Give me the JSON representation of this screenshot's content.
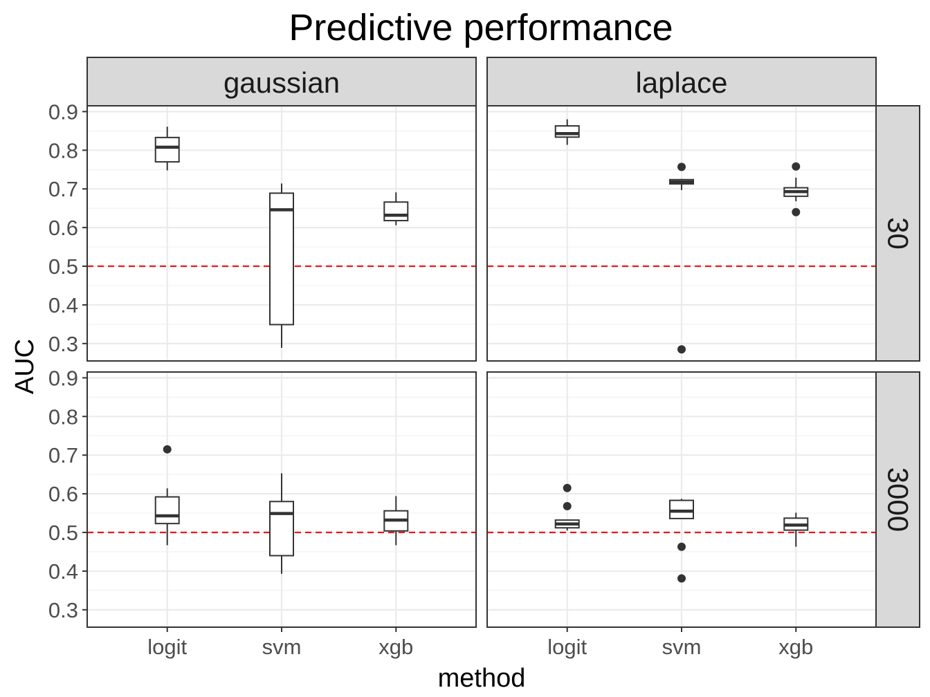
{
  "chart_data": {
    "type": "boxplot",
    "title": "Predictive performance",
    "xlabel": "method",
    "ylabel": "AUC",
    "categories": [
      "logit",
      "svm",
      "xgb"
    ],
    "facet_cols": [
      "gaussian",
      "laplace"
    ],
    "facet_rows": [
      "30",
      "3000"
    ],
    "y_ticks": [
      "0.3",
      "0.4",
      "0.5",
      "0.6",
      "0.7",
      "0.8",
      "0.9"
    ],
    "ylim": [
      0.255,
      0.915
    ],
    "reference_line": {
      "y": 0.5,
      "color": "#e31a1c",
      "style": "dashed"
    },
    "grid": true,
    "panels": [
      {
        "col": "gaussian",
        "row": "30",
        "boxes": [
          {
            "method": "logit",
            "lower": 0.748,
            "q1": 0.77,
            "median": 0.808,
            "q3": 0.833,
            "upper": 0.861,
            "outliers": []
          },
          {
            "method": "svm",
            "lower": 0.289,
            "q1": 0.349,
            "median": 0.646,
            "q3": 0.689,
            "upper": 0.714,
            "outliers": []
          },
          {
            "method": "xgb",
            "lower": 0.606,
            "q1": 0.618,
            "median": 0.632,
            "q3": 0.666,
            "upper": 0.691,
            "outliers": []
          }
        ]
      },
      {
        "col": "laplace",
        "row": "30",
        "boxes": [
          {
            "method": "logit",
            "lower": 0.814,
            "q1": 0.834,
            "median": 0.843,
            "q3": 0.863,
            "upper": 0.88,
            "outliers": []
          },
          {
            "method": "svm",
            "lower": 0.697,
            "q1": 0.713,
            "median": 0.718,
            "q3": 0.724,
            "upper": 0.726,
            "outliers": [
              0.757,
              0.285
            ]
          },
          {
            "method": "xgb",
            "lower": 0.668,
            "q1": 0.681,
            "median": 0.693,
            "q3": 0.703,
            "upper": 0.729,
            "outliers": [
              0.758,
              0.64
            ]
          }
        ]
      },
      {
        "col": "gaussian",
        "row": "3000",
        "boxes": [
          {
            "method": "logit",
            "lower": 0.467,
            "q1": 0.523,
            "median": 0.543,
            "q3": 0.592,
            "upper": 0.614,
            "outliers": [
              0.715
            ]
          },
          {
            "method": "svm",
            "lower": 0.393,
            "q1": 0.44,
            "median": 0.549,
            "q3": 0.58,
            "upper": 0.653,
            "outliers": []
          },
          {
            "method": "xgb",
            "lower": 0.467,
            "q1": 0.504,
            "median": 0.532,
            "q3": 0.556,
            "upper": 0.594,
            "outliers": []
          }
        ]
      },
      {
        "col": "laplace",
        "row": "3000",
        "boxes": [
          {
            "method": "logit",
            "lower": 0.505,
            "q1": 0.512,
            "median": 0.522,
            "q3": 0.532,
            "upper": 0.532,
            "outliers": [
              0.615,
              0.568
            ]
          },
          {
            "method": "svm",
            "lower": 0.535,
            "q1": 0.536,
            "median": 0.555,
            "q3": 0.583,
            "upper": 0.587,
            "outliers": [
              0.463,
              0.381
            ]
          },
          {
            "method": "xgb",
            "lower": 0.463,
            "q1": 0.506,
            "median": 0.519,
            "q3": 0.537,
            "upper": 0.551,
            "outliers": []
          }
        ]
      }
    ]
  }
}
